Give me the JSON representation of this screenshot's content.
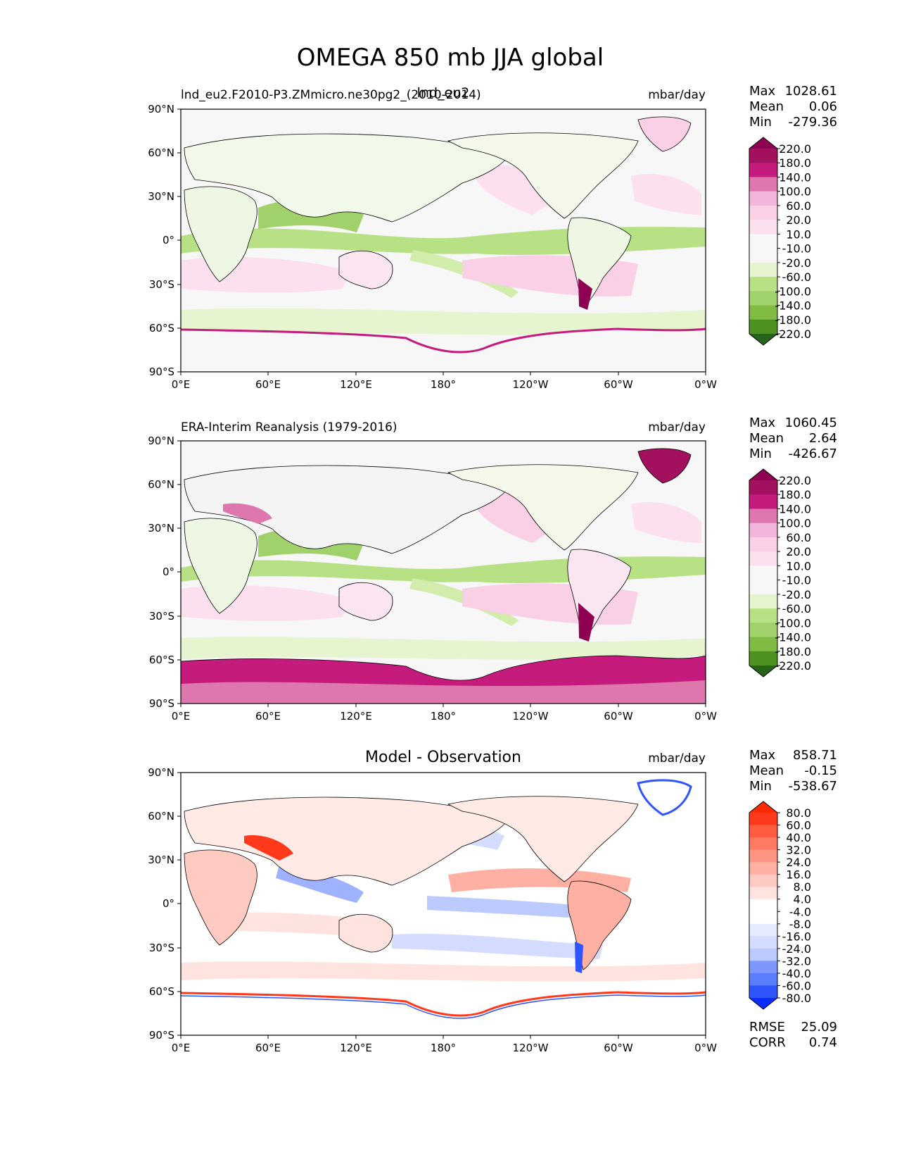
{
  "figure_title": "OMEGA 850 mb JJA global",
  "colors": {
    "pg_neg": [
      "#276419",
      "#4d9221",
      "#63a331",
      "#7fbc41",
      "#a1d16a",
      "#b8e186",
      "#d2ecac",
      "#e6f5d0",
      "#f7f7f7"
    ],
    "pg_pos": [
      "#f7f7f7",
      "#fde0ef",
      "#f9d0e6",
      "#f1b6da",
      "#e894c3",
      "#de77ae",
      "#c51b7d",
      "#a3105e",
      "#8e0152"
    ],
    "bwr_neg": [
      "#0a2cff",
      "#2f55ff",
      "#5b7dff",
      "#7d97ff",
      "#9fb2ff",
      "#bccaff",
      "#d4dcff",
      "#e6ebff",
      "#ffffff"
    ],
    "bwr_pos": [
      "#ffffff",
      "#ffe3df",
      "#ffcac1",
      "#ffb0a3",
      "#ff9582",
      "#ff7a62",
      "#ff5c40",
      "#ff3a1c",
      "#ff2a00"
    ],
    "land_outline": "#000000"
  },
  "chart_data": [
    {
      "type": "heatmap",
      "title_left": "lnd_eu2.F2010-P3.ZMmicro.ne30pg2_(2010-2014)",
      "title_center": "lnd_eu2",
      "title_right": "mbar/day",
      "xlabel": "",
      "ylabel": "",
      "xlim": [
        0,
        360
      ],
      "ylim": [
        -90,
        90
      ],
      "x_ticks": [
        "0°E",
        "60°E",
        "120°E",
        "180°",
        "120°W",
        "60°W",
        "0°W"
      ],
      "y_ticks": [
        "90°N",
        "60°N",
        "30°N",
        "0°",
        "30°S",
        "60°S",
        "90°S"
      ],
      "stats": {
        "max_label": "Max",
        "max": "1028.61",
        "mean_label": "Mean",
        "mean": "0.06",
        "min_label": "Min",
        "min": "-279.36"
      },
      "colorbar_levels": [
        "220.0",
        "180.0",
        "140.0",
        "100.0",
        "60.0",
        "20.0",
        "10.0",
        "-10.0",
        "-20.0",
        "-60.0",
        "-100.0",
        "-140.0",
        "-180.0",
        "-220.0"
      ],
      "colormap": "PiYG_r"
    },
    {
      "type": "heatmap",
      "title_left": "ERA-Interim Reanalysis (1979-2016)",
      "title_right": "mbar/day",
      "xlim": [
        0,
        360
      ],
      "ylim": [
        -90,
        90
      ],
      "x_ticks": [
        "0°E",
        "60°E",
        "120°E",
        "180°",
        "120°W",
        "60°W",
        "0°W"
      ],
      "y_ticks": [
        "90°N",
        "60°N",
        "30°N",
        "0°",
        "30°S",
        "60°S",
        "90°S"
      ],
      "stats": {
        "max_label": "Max",
        "max": "1060.45",
        "mean_label": "Mean",
        "mean": "2.64",
        "min_label": "Min",
        "min": "-426.67"
      },
      "colorbar_levels": [
        "220.0",
        "180.0",
        "140.0",
        "100.0",
        "60.0",
        "20.0",
        "10.0",
        "-10.0",
        "-20.0",
        "-60.0",
        "-100.0",
        "-140.0",
        "-180.0",
        "-220.0"
      ],
      "colormap": "PiYG_r"
    },
    {
      "type": "heatmap",
      "title_center": "Model - Observation",
      "title_right": "mbar/day",
      "xlim": [
        0,
        360
      ],
      "ylim": [
        -90,
        90
      ],
      "x_ticks": [
        "0°E",
        "60°E",
        "120°E",
        "180°",
        "120°W",
        "60°W",
        "0°W"
      ],
      "y_ticks": [
        "90°N",
        "60°N",
        "30°N",
        "0°",
        "30°S",
        "60°S",
        "90°S"
      ],
      "stats": {
        "max_label": "Max",
        "max": "858.71",
        "mean_label": "Mean",
        "mean": "-0.15",
        "min_label": "Min",
        "min": "-538.67"
      },
      "colorbar_levels": [
        "80.0",
        "60.0",
        "40.0",
        "32.0",
        "24.0",
        "16.0",
        "8.0",
        "4.0",
        "-4.0",
        "-8.0",
        "-16.0",
        "-24.0",
        "-32.0",
        "-40.0",
        "-60.0",
        "-80.0"
      ],
      "colormap": "bwr",
      "metrics": {
        "rmse_label": "RMSE",
        "rmse": "25.09",
        "corr_label": "CORR",
        "corr": "0.74"
      }
    }
  ]
}
